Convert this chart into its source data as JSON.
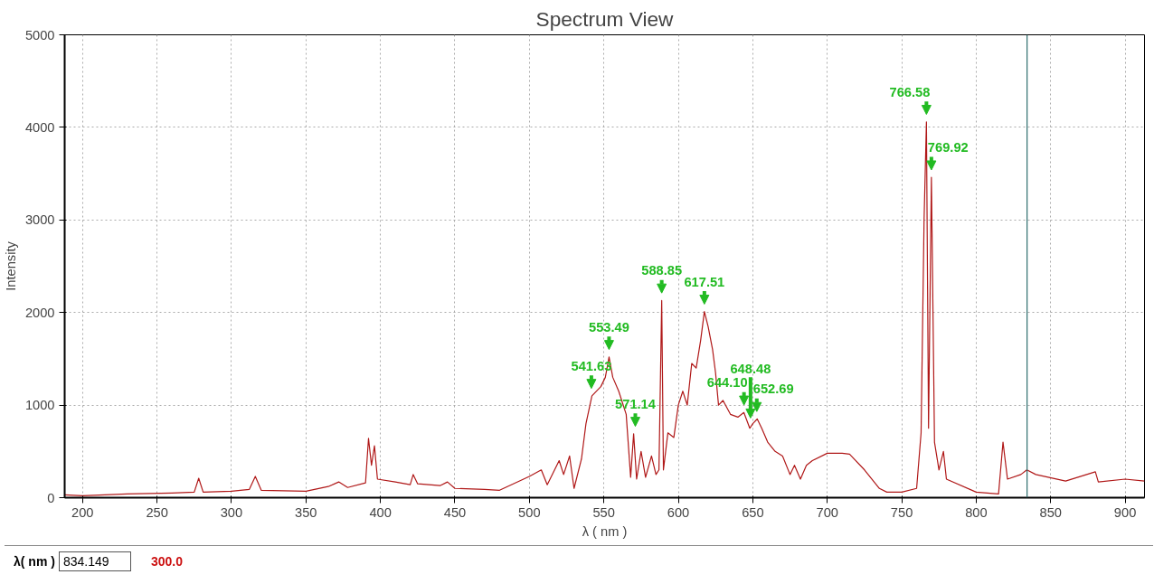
{
  "chart_data": {
    "type": "line",
    "title": "Spectrum View",
    "xlabel": "λ ( nm )",
    "ylabel": "Intensity",
    "xlim": [
      188,
      913
    ],
    "ylim": [
      0,
      5000
    ],
    "xticks": [
      200,
      250,
      300,
      350,
      400,
      450,
      500,
      550,
      600,
      650,
      700,
      750,
      800,
      850,
      900
    ],
    "yticks": [
      0,
      1000,
      2000,
      3000,
      4000,
      5000
    ],
    "grid": true,
    "marker": "none",
    "line_style": "solid",
    "series": [
      {
        "color": "#b01818",
        "x": [
          188,
          200,
          230,
          260,
          275,
          278,
          281,
          300,
          312,
          316,
          320,
          350,
          365,
          372,
          378,
          390,
          392,
          394,
          396,
          398,
          410,
          420,
          422,
          425,
          440,
          445,
          450,
          470,
          480,
          500,
          508,
          512,
          520,
          523,
          527,
          530,
          535,
          538,
          542,
          548,
          551,
          553.5,
          556,
          560,
          565,
          568,
          570,
          572,
          575,
          578,
          582,
          585,
          587,
          588.85,
          590,
          593,
          597,
          600,
          603,
          606,
          609,
          612,
          615,
          617.5,
          620,
          623,
          625,
          627,
          630,
          635,
          640,
          644,
          648,
          650,
          653,
          656,
          660,
          665,
          670,
          675,
          678,
          682,
          686,
          690,
          700,
          710,
          715,
          725,
          735,
          740,
          750,
          760,
          763,
          765,
          766.58,
          768,
          769.92,
          772,
          775,
          778,
          780,
          800,
          815,
          818,
          821,
          830,
          834,
          840,
          860,
          880,
          882,
          900,
          913
        ],
        "values": [
          30,
          20,
          40,
          50,
          60,
          210,
          60,
          70,
          90,
          230,
          80,
          70,
          120,
          170,
          110,
          160,
          640,
          350,
          560,
          200,
          170,
          140,
          250,
          150,
          130,
          170,
          100,
          90,
          80,
          230,
          300,
          140,
          400,
          250,
          450,
          100,
          420,
          800,
          1100,
          1200,
          1300,
          1520,
          1300,
          1150,
          900,
          220,
          690,
          200,
          500,
          220,
          450,
          250,
          300,
          2130,
          300,
          700,
          650,
          1000,
          1150,
          1000,
          1450,
          1400,
          1700,
          2010,
          1850,
          1600,
          1350,
          1000,
          1050,
          900,
          870,
          920,
          750,
          800,
          850,
          750,
          600,
          500,
          450,
          250,
          350,
          200,
          350,
          400,
          480,
          480,
          470,
          300,
          100,
          60,
          60,
          100,
          700,
          3000,
          4060,
          750,
          3460,
          600,
          300,
          500,
          200,
          60,
          40,
          600,
          200,
          250,
          300,
          250,
          180,
          280,
          170,
          200,
          180
        ]
      }
    ],
    "ref_lines": [
      {
        "axis": "x",
        "value": 834.149,
        "color": "#2f6f6f"
      }
    ],
    "annotations": [
      {
        "text": "541.63",
        "x": 541.63,
        "y": 1100
      },
      {
        "text": "553.49",
        "x": 553.49,
        "y": 1520
      },
      {
        "text": "571.14",
        "x": 571.14,
        "y": 690
      },
      {
        "text": "588.85",
        "x": 588.85,
        "y": 2130
      },
      {
        "text": "617.51",
        "x": 617.51,
        "y": 2010
      },
      {
        "text": "644.10",
        "x": 644.1,
        "y": 920
      },
      {
        "text": "648.48",
        "x": 648.48,
        "y": 780
      },
      {
        "text": "652.69",
        "x": 652.69,
        "y": 850
      },
      {
        "text": "766.58",
        "x": 766.58,
        "y": 4060
      },
      {
        "text": "769.92",
        "x": 769.92,
        "y": 3460
      },
      "λ( nm )",
      "834.149",
      "300.0"
    ]
  }
}
